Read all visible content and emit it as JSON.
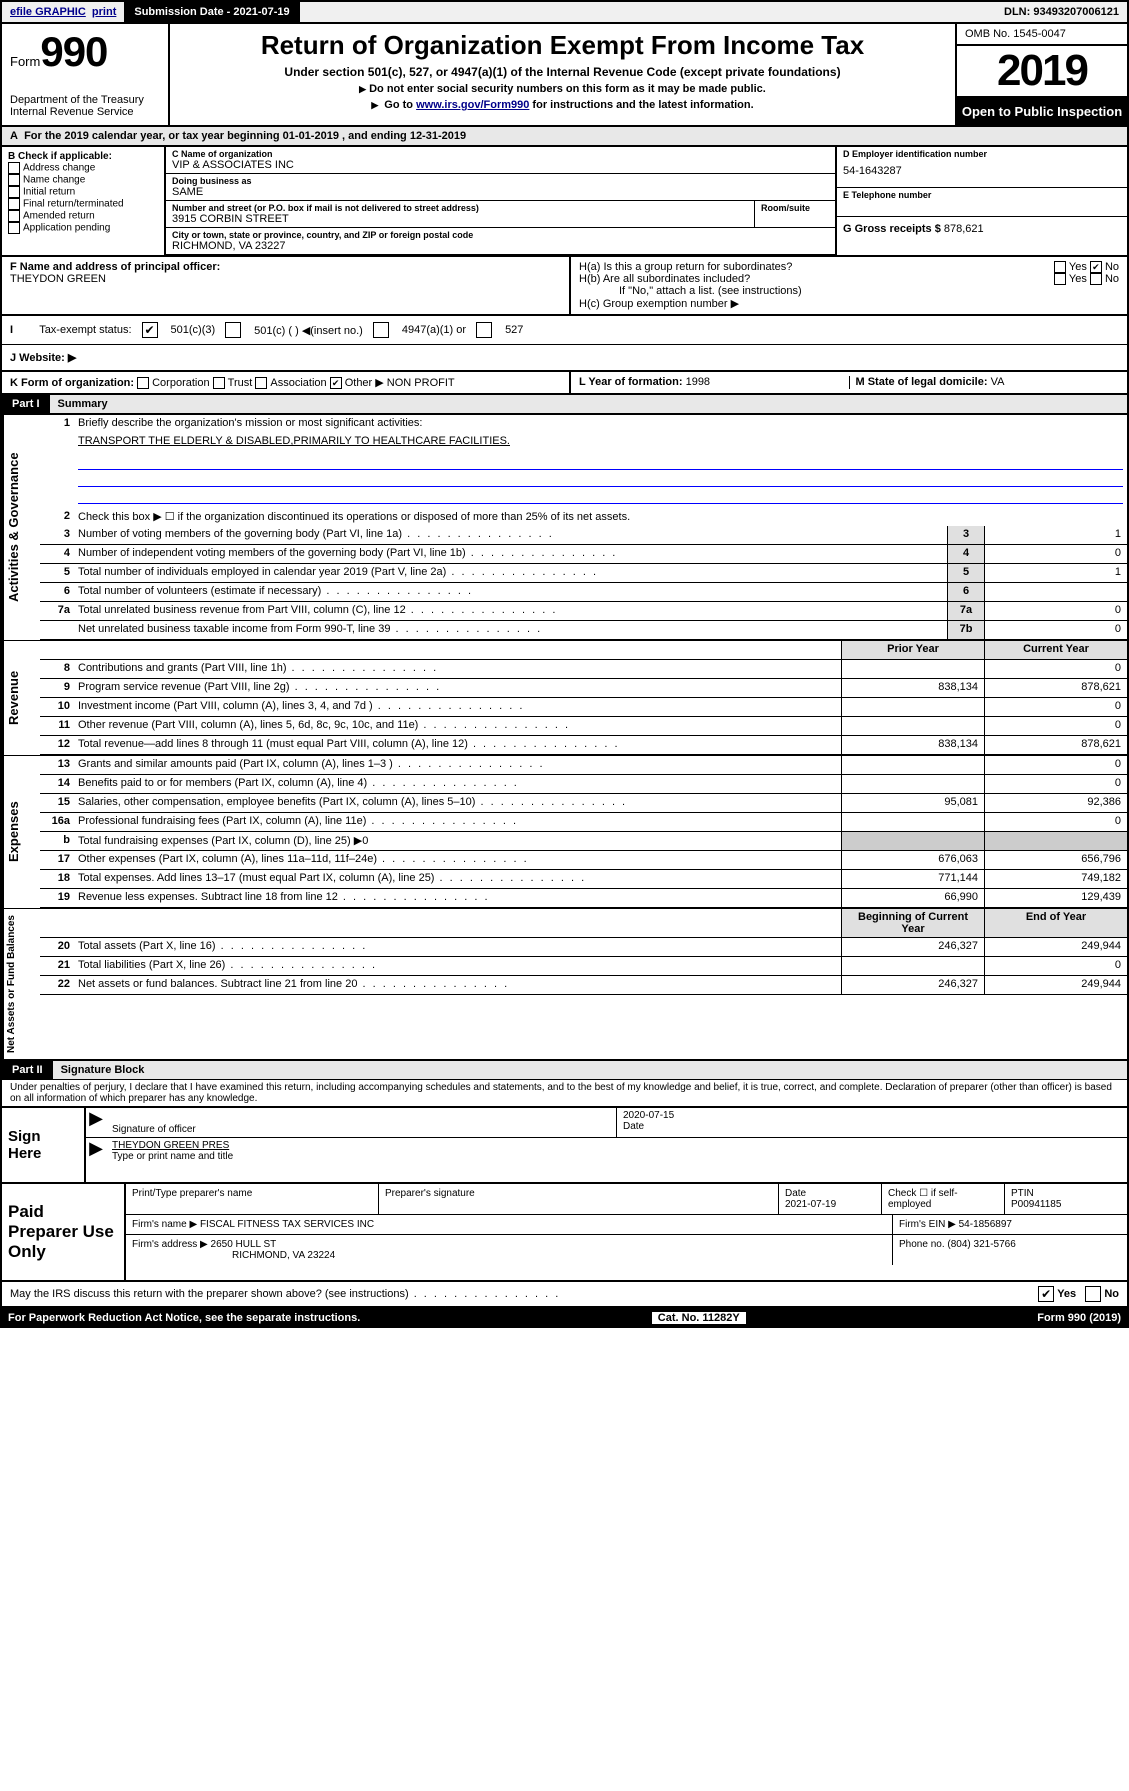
{
  "topbar": {
    "efile": "efile GRAPHIC",
    "print": "print",
    "subdate_label": "Submission Date - 2021-07-19",
    "dln": "DLN: 93493207006121"
  },
  "header": {
    "form_prefix": "Form",
    "form_no": "990",
    "dept": "Department of the Treasury\nInternal Revenue Service",
    "title": "Return of Organization Exempt From Income Tax",
    "subtitle": "Under section 501(c), 527, or 4947(a)(1) of the Internal Revenue Code (except private foundations)",
    "notice1": "Do not enter social security numbers on this form as it may be made public.",
    "notice2_pre": "Go to ",
    "notice2_link": "www.irs.gov/Form990",
    "notice2_post": " for instructions and the latest information.",
    "omb": "OMB No. 1545-0047",
    "year": "2019",
    "open": "Open to Public Inspection"
  },
  "periodA": "For the 2019 calendar year, or tax year beginning 01-01-2019   , and ending 12-31-2019",
  "boxB": {
    "header": "B Check if applicable:",
    "items": [
      "Address change",
      "Name change",
      "Initial return",
      "Final return/terminated",
      "Amended return",
      "Application pending"
    ]
  },
  "boxC": {
    "name_label": "C Name of organization",
    "name": "VIP & ASSOCIATES INC",
    "dba_label": "Doing business as",
    "dba": "SAME",
    "street_label": "Number and street (or P.O. box if mail is not delivered to street address)",
    "room_label": "Room/suite",
    "street": "3915 CORBIN STREET",
    "city_label": "City or town, state or province, country, and ZIP or foreign postal code",
    "city": "RICHMOND, VA  23227"
  },
  "boxD": {
    "label": "D Employer identification number",
    "val": "54-1643287"
  },
  "boxE": {
    "label": "E Telephone number",
    "val": ""
  },
  "boxG": {
    "label": "G Gross receipts $",
    "val": "878,621"
  },
  "boxF": {
    "label": "F  Name and address of principal officer:",
    "val": "THEYDON GREEN"
  },
  "boxH": {
    "a": "H(a)  Is this a group return for subordinates?",
    "b": "H(b)  Are all subordinates included?",
    "bnote": "If \"No,\" attach a list. (see instructions)",
    "c": "H(c)  Group exemption number ▶",
    "yes": "Yes",
    "no": "No"
  },
  "boxI": {
    "label": "Tax-exempt status:",
    "opts": [
      "501(c)(3)",
      "501(c) (  ) ◀(insert no.)",
      "4947(a)(1) or",
      "527"
    ]
  },
  "boxJ": {
    "label": "J   Website: ▶"
  },
  "boxK": {
    "label": "K Form of organization:",
    "opts": [
      "Corporation",
      "Trust",
      "Association",
      "Other ▶"
    ],
    "other": "NON PROFIT"
  },
  "boxL": {
    "label": "L Year of formation:",
    "val": "1998"
  },
  "boxM": {
    "label": "M State of legal domicile:",
    "val": "VA"
  },
  "partI": {
    "tag": "Part I",
    "label": "Summary"
  },
  "summary": {
    "l1": "Briefly describe the organization's mission or most significant activities:",
    "l1val": "TRANSPORT THE ELDERLY & DISABLED,PRIMARILY TO HEALTHCARE FACILITIES.",
    "l2": "Check this box ▶ ☐  if the organization discontinued its operations or disposed of more than 25% of its net assets.",
    "rows37": [
      {
        "n": "3",
        "t": "Number of voting members of the governing body (Part VI, line 1a)",
        "k": "3",
        "v": "1"
      },
      {
        "n": "4",
        "t": "Number of independent voting members of the governing body (Part VI, line 1b)",
        "k": "4",
        "v": "0"
      },
      {
        "n": "5",
        "t": "Total number of individuals employed in calendar year 2019 (Part V, line 2a)",
        "k": "5",
        "v": "1"
      },
      {
        "n": "6",
        "t": "Total number of volunteers (estimate if necessary)",
        "k": "6",
        "v": ""
      },
      {
        "n": "7a",
        "t": "Total unrelated business revenue from Part VIII, column (C), line 12",
        "k": "7a",
        "v": "0"
      },
      {
        "n": "",
        "t": "Net unrelated business taxable income from Form 990-T, line 39",
        "k": "7b",
        "v": "0"
      }
    ],
    "col_prior": "Prior Year",
    "col_current": "Current Year",
    "col_begin": "Beginning of Current Year",
    "col_end": "End of Year",
    "revenue": [
      {
        "n": "8",
        "t": "Contributions and grants (Part VIII, line 1h)",
        "p": "",
        "c": "0"
      },
      {
        "n": "9",
        "t": "Program service revenue (Part VIII, line 2g)",
        "p": "838,134",
        "c": "878,621"
      },
      {
        "n": "10",
        "t": "Investment income (Part VIII, column (A), lines 3, 4, and 7d )",
        "p": "",
        "c": "0"
      },
      {
        "n": "11",
        "t": "Other revenue (Part VIII, column (A), lines 5, 6d, 8c, 9c, 10c, and 11e)",
        "p": "",
        "c": "0"
      },
      {
        "n": "12",
        "t": "Total revenue—add lines 8 through 11 (must equal Part VIII, column (A), line 12)",
        "p": "838,134",
        "c": "878,621"
      }
    ],
    "expenses": [
      {
        "n": "13",
        "t": "Grants and similar amounts paid (Part IX, column (A), lines 1–3 )",
        "p": "",
        "c": "0"
      },
      {
        "n": "14",
        "t": "Benefits paid to or for members (Part IX, column (A), line 4)",
        "p": "",
        "c": "0"
      },
      {
        "n": "15",
        "t": "Salaries, other compensation, employee benefits (Part IX, column (A), lines 5–10)",
        "p": "95,081",
        "c": "92,386"
      },
      {
        "n": "16a",
        "t": "Professional fundraising fees (Part IX, column (A), line 11e)",
        "p": "",
        "c": "0"
      },
      {
        "n": "b",
        "t": "Total fundraising expenses (Part IX, column (D), line 25) ▶0",
        "p": "—",
        "c": "—"
      },
      {
        "n": "17",
        "t": "Other expenses (Part IX, column (A), lines 11a–11d, 11f–24e)",
        "p": "676,063",
        "c": "656,796"
      },
      {
        "n": "18",
        "t": "Total expenses. Add lines 13–17 (must equal Part IX, column (A), line 25)",
        "p": "771,144",
        "c": "749,182"
      },
      {
        "n": "19",
        "t": "Revenue less expenses. Subtract line 18 from line 12",
        "p": "66,990",
        "c": "129,439"
      }
    ],
    "netassets": [
      {
        "n": "20",
        "t": "Total assets (Part X, line 16)",
        "p": "246,327",
        "c": "249,944"
      },
      {
        "n": "21",
        "t": "Total liabilities (Part X, line 26)",
        "p": "",
        "c": "0"
      },
      {
        "n": "22",
        "t": "Net assets or fund balances. Subtract line 21 from line 20",
        "p": "246,327",
        "c": "249,944"
      }
    ]
  },
  "vtabs": {
    "gov": "Activities & Governance",
    "rev": "Revenue",
    "exp": "Expenses",
    "net": "Net Assets or Fund Balances"
  },
  "partII": {
    "tag": "Part II",
    "label": "Signature Block"
  },
  "declaration": "Under penalties of perjury, I declare that I have examined this return, including accompanying schedules and statements, and to the best of my knowledge and belief, it is true, correct, and complete. Declaration of preparer (other than officer) is based on all information of which preparer has any knowledge.",
  "sign": {
    "here": "Sign Here",
    "sig_officer": "Signature of officer",
    "date": "Date",
    "date_val": "2020-07-15",
    "typed": "THEYDON GREEN PRES",
    "typed_label": "Type or print name and title"
  },
  "paid": {
    "label": "Paid Preparer Use Only",
    "h1": "Print/Type preparer's name",
    "h2": "Preparer's signature",
    "h3": "Date",
    "h3v": "2021-07-19",
    "h4": "Check ☐ if self-employed",
    "h5": "PTIN",
    "h5v": "P00941185",
    "firm_name_l": "Firm's name    ▶",
    "firm_name": "FISCAL FITNESS TAX SERVICES INC",
    "firm_ein_l": "Firm's EIN ▶",
    "firm_ein": "54-1856897",
    "firm_addr_l": "Firm's address ▶",
    "firm_addr": "2650 HULL ST",
    "firm_addr2": "RICHMOND, VA  23224",
    "phone_l": "Phone no.",
    "phone": "(804) 321-5766"
  },
  "discuss": {
    "text": "May the IRS discuss this return with the preparer shown above? (see instructions)",
    "yes": "Yes",
    "no": "No"
  },
  "footer": {
    "left": "For Paperwork Reduction Act Notice, see the separate instructions.",
    "mid": "Cat. No. 11282Y",
    "right": "Form 990 (2019)"
  }
}
